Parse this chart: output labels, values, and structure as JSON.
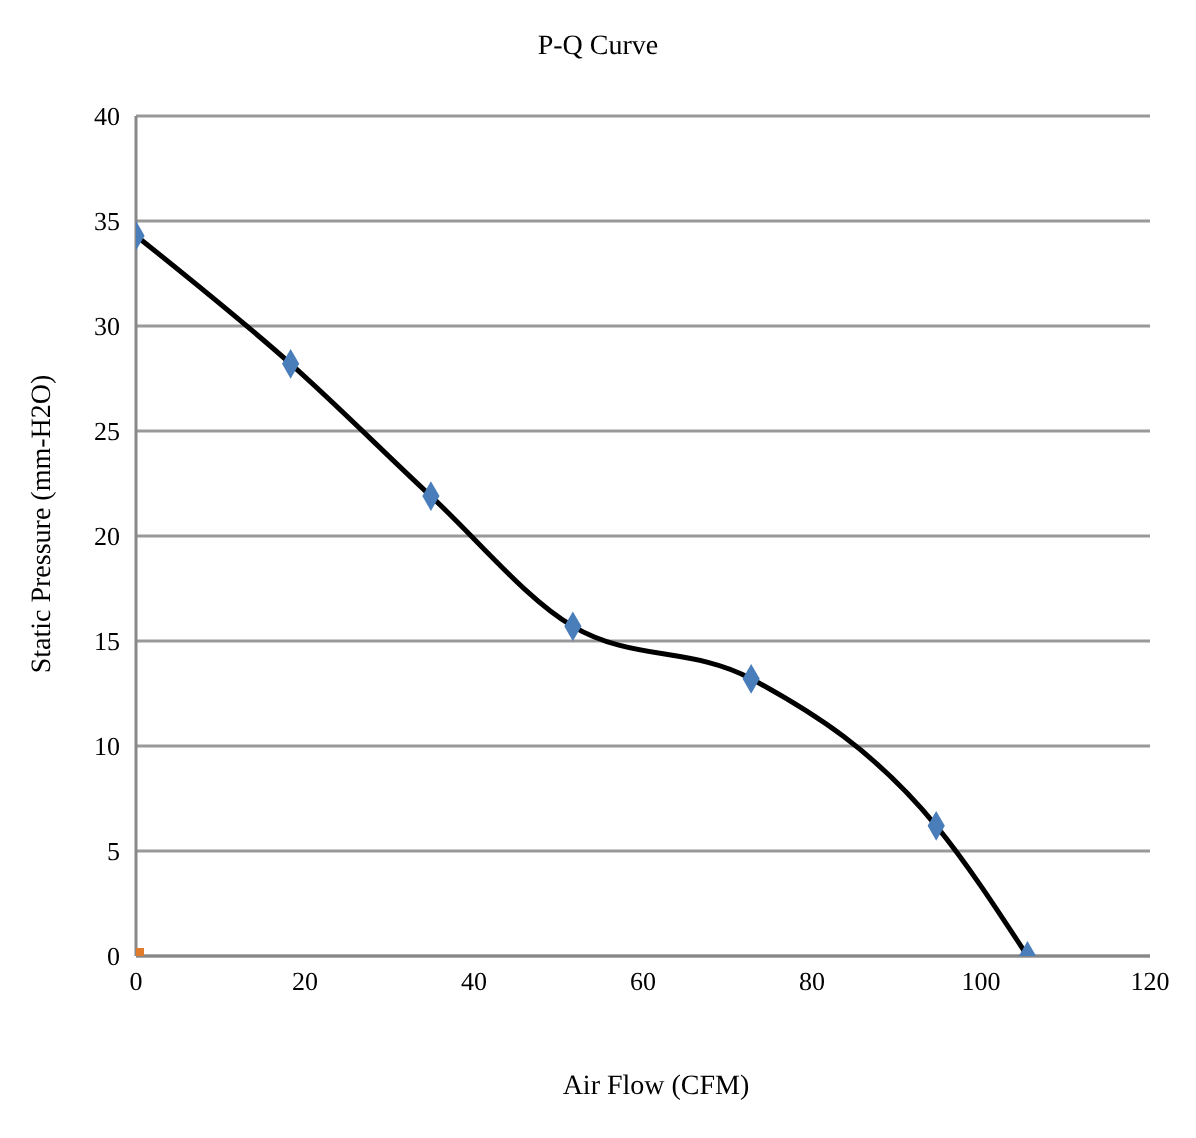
{
  "chart_data": {
    "type": "scatter",
    "title": "P-Q Curve",
    "xlabel": "Air Flow (CFM)",
    "ylabel": "Static Pressure (mm-H2O)",
    "x": [
      0,
      18.3,
      34.9,
      51.7,
      72.8,
      94.7,
      105.5
    ],
    "series": [
      {
        "color": "#4a7ebb",
        "marker": "diamond",
        "values": [
          34.3,
          28.2,
          21.9,
          15.7,
          13.2,
          6.2,
          0
        ]
      },
      {
        "type": "line",
        "color": "#000000",
        "marker": "none",
        "values": [
          34.3,
          28.2,
          21.9,
          15.7,
          13.2,
          6.2,
          0
        ]
      },
      {
        "color": "#e07b2c",
        "marker": "square",
        "x": [
          0
        ],
        "values": [
          0
        ]
      }
    ],
    "xlim": [
      0,
      120
    ],
    "xticks": [
      0,
      20,
      40,
      60,
      80,
      100,
      120
    ],
    "ylim": [
      0,
      40
    ],
    "yticks": [
      0,
      5,
      10,
      15,
      20,
      25,
      30,
      35,
      40
    ],
    "grid": "y",
    "legend": false
  }
}
